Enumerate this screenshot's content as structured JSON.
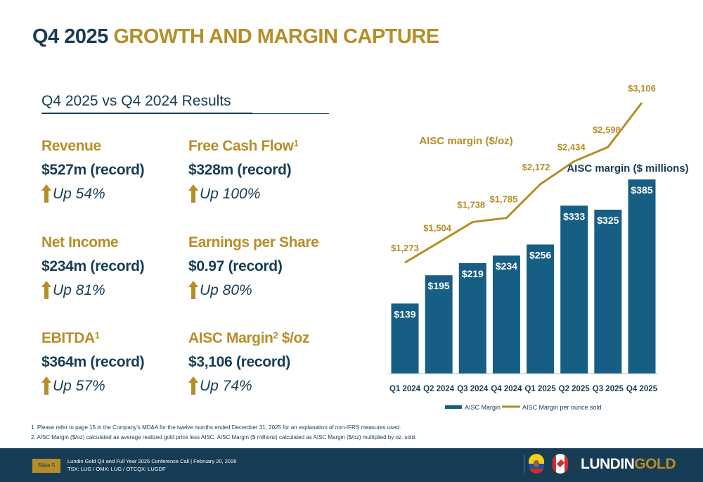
{
  "header": {
    "title_part1": "Q4 2025",
    "title_part2": "GROWTH AND MARGIN CAPTURE"
  },
  "results": {
    "subtitle": "Q4 2025 vs Q4 2024 Results",
    "metrics": [
      {
        "name": "Revenue",
        "sup": "",
        "value": "$527m (record)",
        "change": "Up 54%"
      },
      {
        "name": "Free Cash Flow",
        "sup": "1",
        "value": "$328m (record)",
        "change": "Up 100%"
      },
      {
        "name": "Net Income",
        "sup": "",
        "value": "$234m (record)",
        "change": "Up 81%"
      },
      {
        "name": "Earnings per Share",
        "sup": "",
        "value": "$0.97 (record)",
        "change": "Up 80%"
      },
      {
        "name": "EBITDA",
        "sup": "1",
        "value": "$364m (record)",
        "change": "Up 57%"
      },
      {
        "name": "AISC Margin",
        "sup": "2",
        "suffix": " $/oz",
        "value": "$3,106 (record)",
        "change": "Up 74%"
      }
    ]
  },
  "chart_data": {
    "type": "bar",
    "categories": [
      "Q1 2024",
      "Q2 2024",
      "Q3 2024",
      "Q4 2024",
      "Q1 2025",
      "Q2 2025",
      "Q3 2025",
      "Q4 2025"
    ],
    "series": [
      {
        "name": "AISC Margin",
        "type": "bar",
        "values": [
          139,
          195,
          219,
          234,
          256,
          333,
          325,
          385
        ],
        "labels": [
          "$139",
          "$195",
          "$219",
          "$234",
          "$256",
          "$333",
          "$325",
          "$385"
        ],
        "color": "#175e85"
      },
      {
        "name": "AISC Margin per ounce sold",
        "type": "line",
        "values": [
          1273,
          1504,
          1738,
          1785,
          2172,
          2434,
          2598,
          3106
        ],
        "labels": [
          "$1,273",
          "$1,504",
          "$1,738",
          "$1,785",
          "$2,172",
          "$2,434",
          "$2,598",
          "$3,106"
        ],
        "color": "#b68e28"
      }
    ],
    "annotations": {
      "line_label": "AISC margin ($/oz)",
      "bar_label": "AISC margin ($ millions)"
    },
    "legend": {
      "position": "bottom",
      "items": [
        "AISC Margin",
        "AISC Margin per ounce sold"
      ]
    },
    "ylim_bar": [
      0,
      475
    ],
    "ylim_line": [
      0,
      3106
    ],
    "grid": false
  },
  "footnotes": [
    "1.    Please refer to page 15 in the Company's MD&A for the twelve months ended December 31, 2025 for an explanation of non-IFRS measures used.",
    "2.    AISC Margin ($/oz) calculated as average realized gold price less AISC.  AISC Margin ($ millions) calculated as AISC Margin ($/oz) multiplied by oz. sold."
  ],
  "footer": {
    "slide": "Slide 5",
    "conference": "Lundin Gold Q4 and Full Year 2025 Conference Call | February 20, 2026",
    "tickers": "TSX: LUG / OMX: LUG / OTCQX: LUGDF",
    "logo_part1": "LUNDIN",
    "logo_part2": "GOLD"
  },
  "colors": {
    "navy": "#173c55",
    "gold": "#b68e28",
    "bar": "#175e85"
  }
}
